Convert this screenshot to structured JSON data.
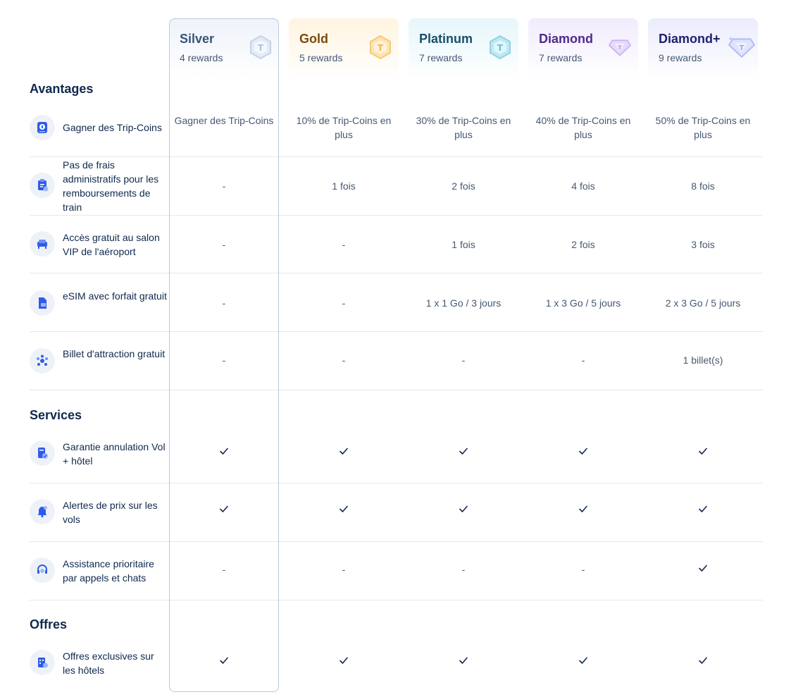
{
  "tiers": [
    {
      "name": "Silver",
      "rewards": "4 rewards",
      "badge_icon": "silver-badge-icon",
      "color": "#9fb3cc"
    },
    {
      "name": "Gold",
      "rewards": "5 rewards",
      "badge_icon": "gold-badge-icon",
      "color": "#f4c77a"
    },
    {
      "name": "Platinum",
      "rewards": "7 rewards",
      "badge_icon": "platinum-badge-icon",
      "color": "#7fd0e6"
    },
    {
      "name": "Diamond",
      "rewards": "7 rewards",
      "badge_icon": "diamond-badge-icon",
      "color": "#c4a9f0"
    },
    {
      "name": "Diamond+",
      "rewards": "9 rewards",
      "badge_icon": "diamond-plus-badge-icon",
      "color": "#a9b4f5"
    }
  ],
  "sections": {
    "avantages": "Avantages",
    "services": "Services",
    "offres": "Offres"
  },
  "rows": {
    "trip_coins": {
      "label": "Gagner des Trip-Coins",
      "icon": "coin-icon",
      "values": [
        "Gagner des Trip-Coins",
        "10% de Trip-Coins en plus",
        "30% de Trip-Coins en plus",
        "40% de Trip-Coins en plus",
        "50% de Trip-Coins en plus"
      ]
    },
    "train_refund": {
      "label": "Pas de frais administratifs pour les remboursements de train",
      "icon": "train-ticket-icon",
      "values": [
        "-",
        "1 fois",
        "2 fois",
        "4 fois",
        "8 fois"
      ]
    },
    "vip_lounge": {
      "label": "Accès gratuit au salon VIP de l'aéroport",
      "icon": "lounge-seat-icon",
      "values": [
        "-",
        "-",
        "1 fois",
        "2 fois",
        "3 fois"
      ]
    },
    "esim": {
      "label": "eSIM avec forfait gratuit",
      "icon": "esim-card-icon",
      "values": [
        "-",
        "-",
        "1 x 1 Go / 3 jours",
        "1 x 3 Go / 5 jours",
        "2 x 3 Go / 5 jours"
      ]
    },
    "attraction": {
      "label": "Billet d'attraction gratuit",
      "icon": "attraction-icon",
      "values": [
        "-",
        "-",
        "-",
        "-",
        "1 billet(s)"
      ]
    },
    "cancel_guarantee": {
      "label": "Garantie annulation Vol + hôtel",
      "icon": "cancel-guarantee-icon",
      "values": [
        "check",
        "check",
        "check",
        "check",
        "check"
      ]
    },
    "price_alerts": {
      "label": "Alertes de prix sur les vols",
      "icon": "bell-icon",
      "values": [
        "check",
        "check",
        "check",
        "check",
        "check"
      ]
    },
    "priority_support": {
      "label": "Assistance prioritaire par appels et chats",
      "icon": "headset-icon",
      "values": [
        "-",
        "-",
        "-",
        "-",
        "check"
      ]
    },
    "hotel_offers": {
      "label": "Offres exclusives sur les hôtels",
      "icon": "hotel-offer-icon",
      "values": [
        "check",
        "check",
        "check",
        "check",
        "check"
      ]
    }
  },
  "colors": {
    "accent": "#3264ff",
    "text": "#0f294d",
    "muted": "#455873",
    "divider": "#e4e7ec",
    "silver_border": "#b7cbe6"
  }
}
